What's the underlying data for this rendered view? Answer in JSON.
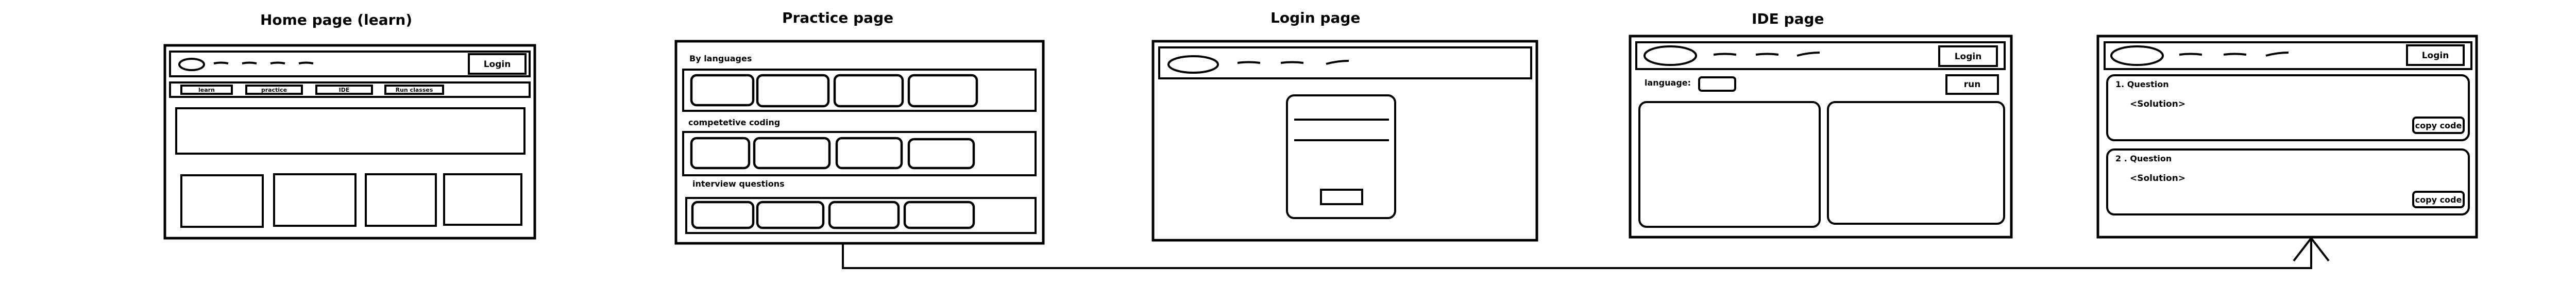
{
  "diagram": {
    "titles": {
      "home": "Home page (learn)",
      "practice": "Practice page",
      "login": "Login page",
      "ide": "IDE page"
    },
    "home": {
      "login_button": "Login",
      "tabs": [
        "learn",
        "practice",
        "IDE",
        "Run classes"
      ]
    },
    "practice": {
      "section_languages": "By languages",
      "section_competitive": "competetive coding",
      "section_interview": "interview questions"
    },
    "ide": {
      "login_button": "Login",
      "language_label": "language:",
      "run_button": "run"
    },
    "solutions": {
      "login_button": "Login",
      "q1_title": "1. Question",
      "q1_solution": "<Solution>",
      "q1_copy": "copy code",
      "q2_title": "2 . Question",
      "q2_solution": "<Solution>",
      "q2_copy": "copy code"
    }
  }
}
